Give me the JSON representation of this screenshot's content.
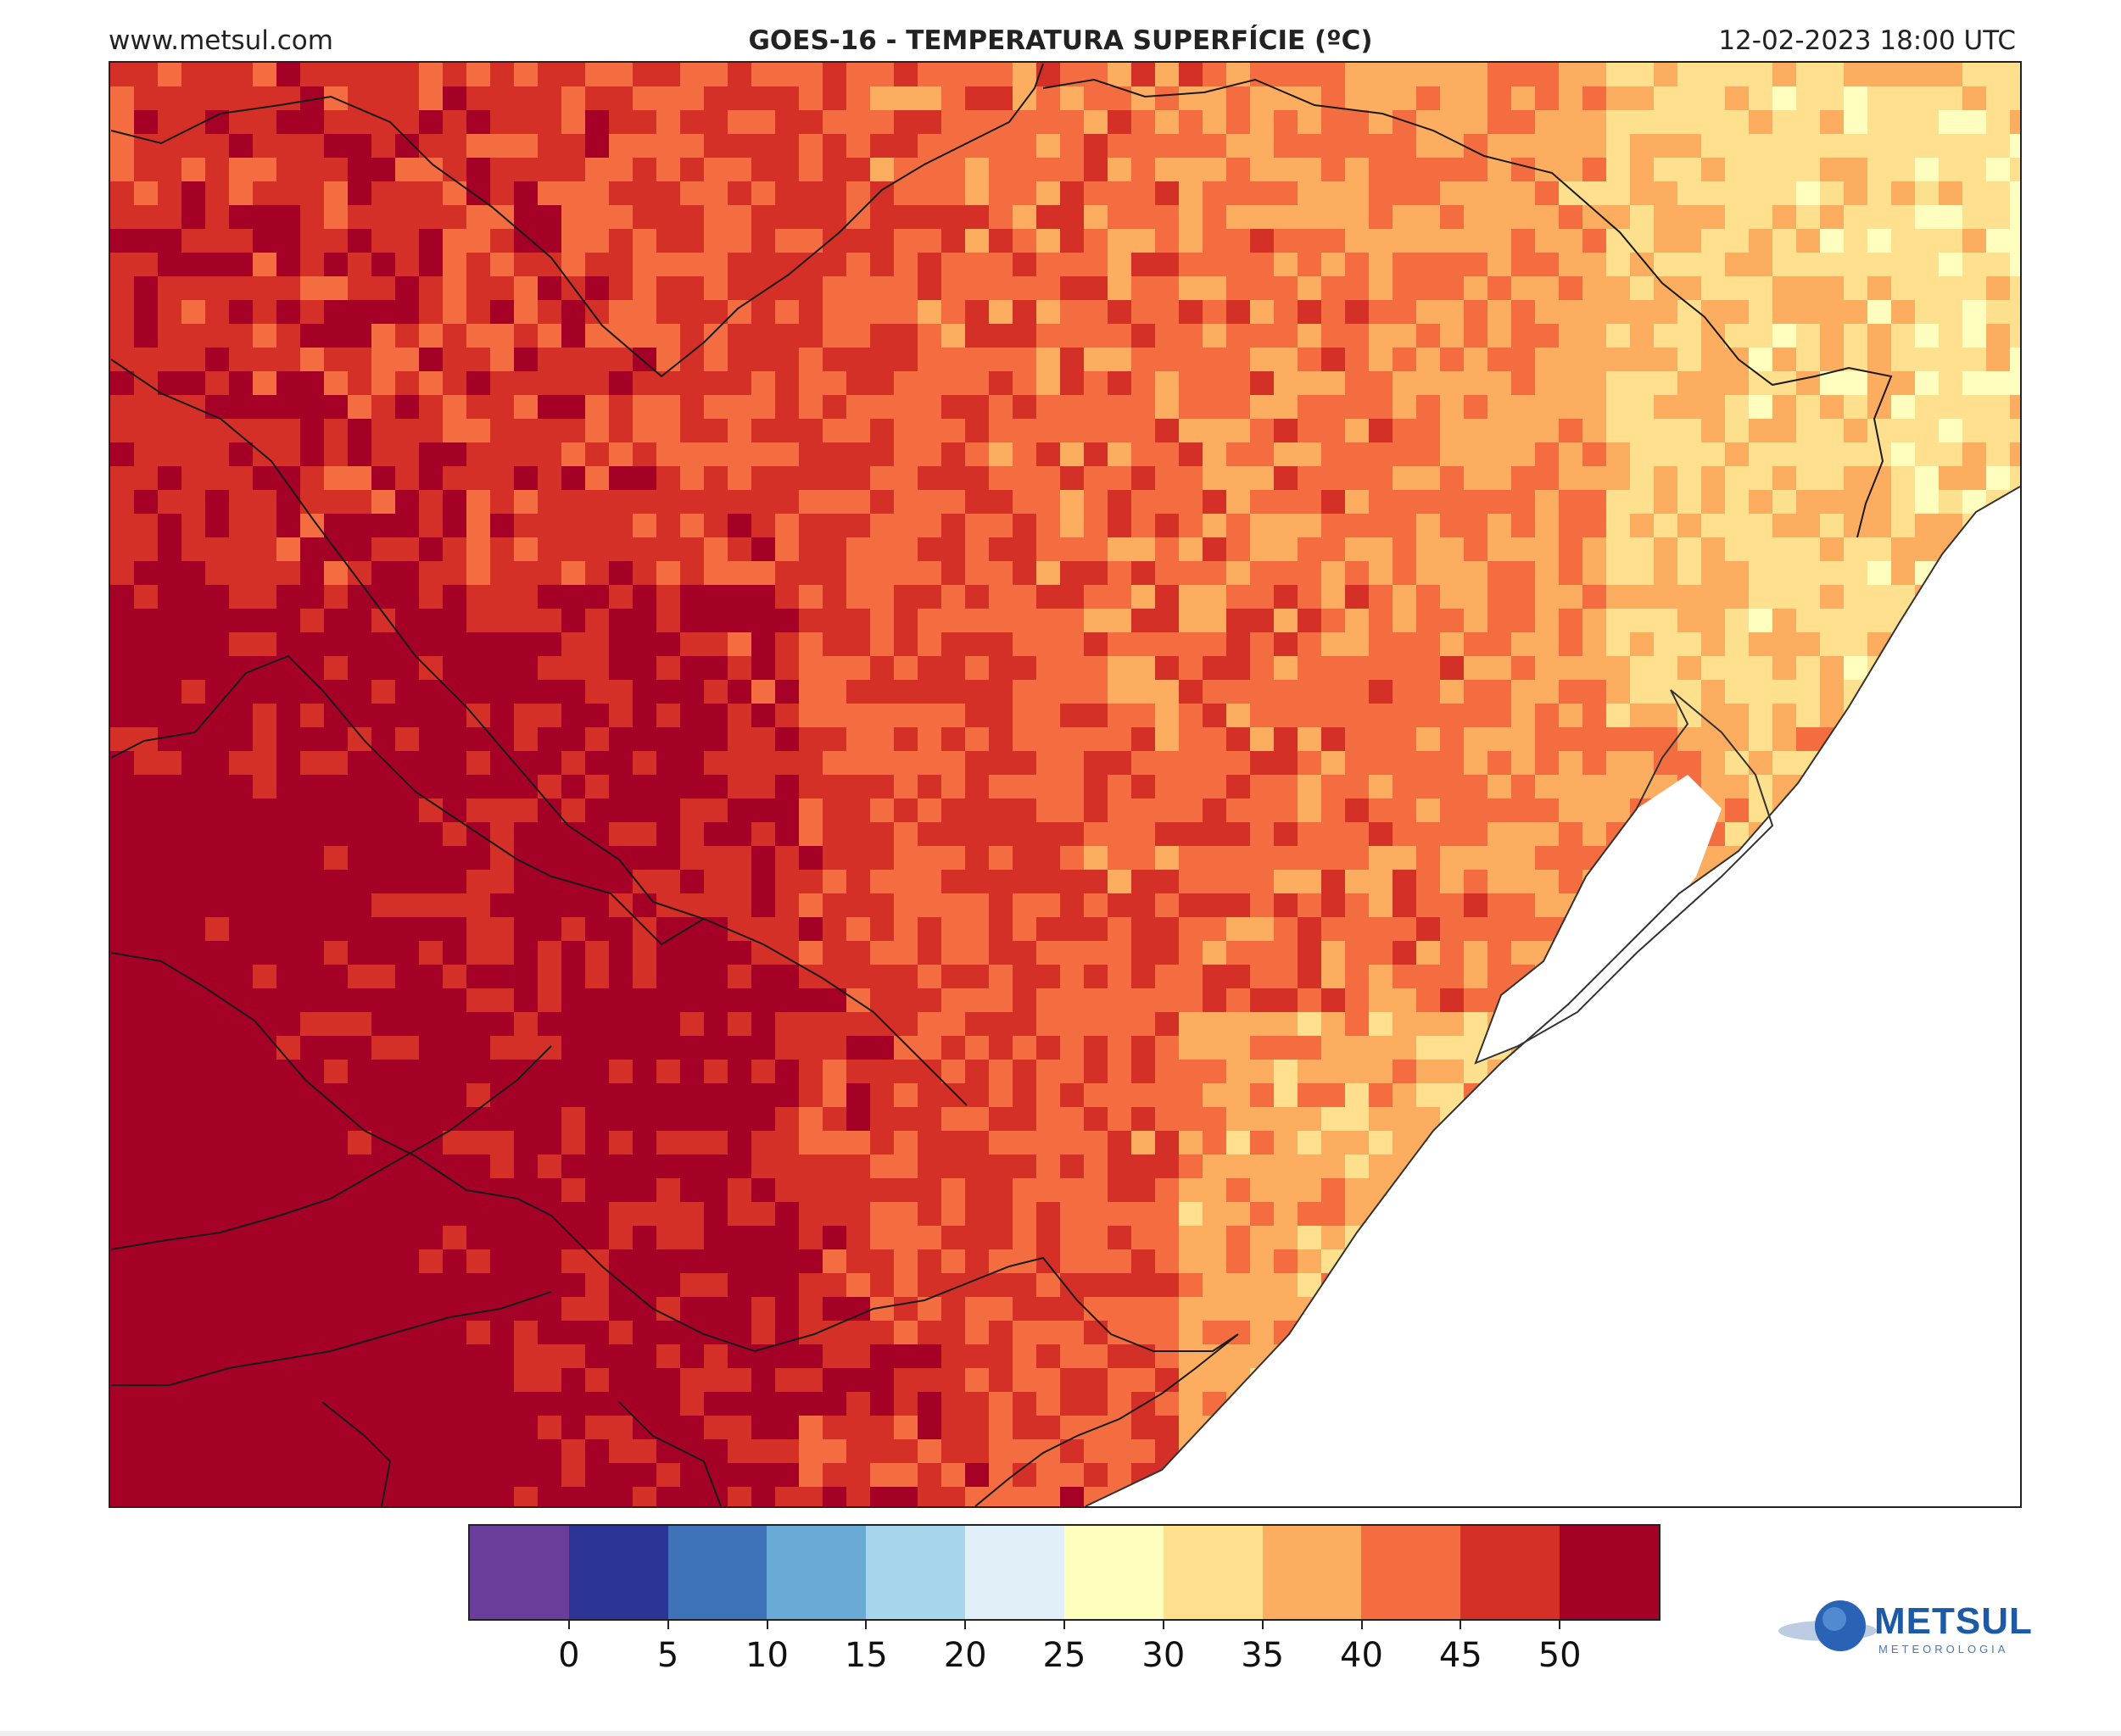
{
  "header": {
    "site": "www.metsul.com",
    "title": "GOES-16 - TEMPERATURA SUPERFÍCIE (ºC)",
    "timestamp": "12-02-2023 18:00 UTC"
  },
  "colorbar": {
    "colors": [
      "#6a3d9a",
      "#2c3596",
      "#3f72b8",
      "#6aaad6",
      "#a7d5ec",
      "#e1eff8",
      "#fefebf",
      "#fee08e",
      "#fdad60",
      "#f36d40",
      "#d43027",
      "#a50026"
    ],
    "ticks": [
      "0",
      "5",
      "10",
      "15",
      "20",
      "25",
      "30",
      "35",
      "40",
      "45",
      "50"
    ],
    "tick_values": [
      0,
      5,
      10,
      15,
      20,
      25,
      30,
      35,
      40,
      45,
      50
    ],
    "range": [
      -5,
      55
    ]
  },
  "map": {
    "temperature_field": {
      "west": 50,
      "center": 44,
      "east": 36,
      "coast": 30
    }
  },
  "logo": {
    "name": "METSUL",
    "subtitle": "METEOROLOGIA",
    "icon": "globe-icon"
  }
}
